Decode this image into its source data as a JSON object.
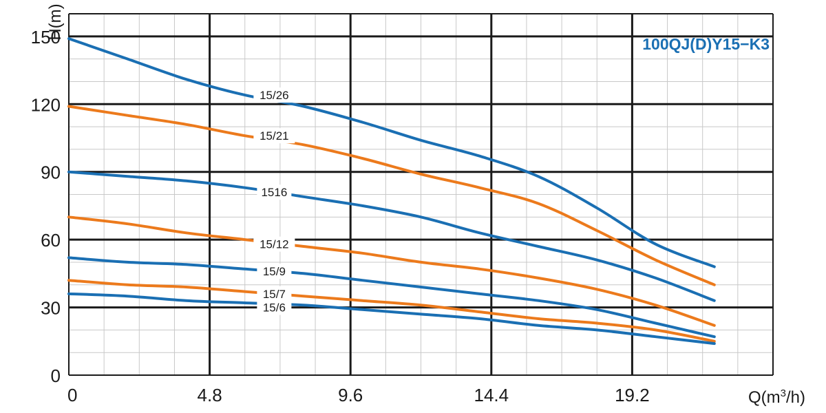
{
  "chart_data": {
    "type": "line",
    "title": "100QJ(D)Y15−K3",
    "xlabel": "Q(m³/h)",
    "ylabel": "H(m)",
    "xlim": [
      0,
      24
    ],
    "ylim": [
      0,
      160
    ],
    "x_ticks": [
      0,
      4.8,
      9.6,
      14.4,
      19.2
    ],
    "x_tick_labels": [
      "0",
      "4.8",
      "9.6",
      "14.4",
      "19.2"
    ],
    "y_ticks": [
      0,
      30,
      60,
      90,
      120,
      150
    ],
    "y_tick_labels": [
      "0",
      "30",
      "60",
      "90",
      "120",
      "150"
    ],
    "grid": true,
    "colors": {
      "blue": "#1a6fb3",
      "orange": "#ec7a1c",
      "grid_major": "#1a1a1a",
      "grid_minor": "#c8c8c8",
      "title": "#1a6fb3"
    },
    "series": [
      {
        "name": "15/26",
        "color": "blue",
        "x": [
          0,
          2,
          4,
          6,
          8,
          10,
          12,
          14,
          16,
          18,
          20,
          22
        ],
        "y": [
          149,
          140,
          131,
          124,
          119,
          112,
          104,
          97,
          88,
          74,
          58,
          48
        ]
      },
      {
        "name": "15/21",
        "color": "orange",
        "x": [
          0,
          2,
          4,
          6,
          8,
          10,
          12,
          14,
          16,
          18,
          20,
          22
        ],
        "y": [
          119,
          115,
          111,
          106,
          102,
          96,
          89,
          83,
          76,
          64,
          51,
          40
        ]
      },
      {
        "name": "1516",
        "color": "blue",
        "x": [
          0,
          2,
          4,
          6,
          8,
          10,
          12,
          14,
          16,
          18,
          20,
          22
        ],
        "y": [
          90,
          88,
          86,
          83,
          79,
          75,
          70,
          63,
          57,
          51,
          43,
          33
        ]
      },
      {
        "name": "15/12",
        "color": "orange",
        "x": [
          0,
          2,
          4,
          6,
          8,
          10,
          12,
          14,
          16,
          18,
          20,
          22
        ],
        "y": [
          70,
          67,
          63,
          60,
          57,
          54,
          50,
          47,
          43,
          38,
          31,
          22
        ]
      },
      {
        "name": "15/9",
        "color": "blue",
        "x": [
          0,
          2,
          4,
          6,
          8,
          10,
          12,
          14,
          16,
          18,
          20,
          22
        ],
        "y": [
          52,
          50,
          49,
          47,
          45,
          42,
          39,
          36,
          33,
          29,
          23,
          17
        ]
      },
      {
        "name": "15/7",
        "color": "orange",
        "x": [
          0,
          2,
          4,
          6,
          8,
          10,
          12,
          14,
          16,
          18,
          20,
          22
        ],
        "y": [
          42,
          40,
          39,
          37,
          35,
          33,
          31,
          28,
          25,
          23,
          20,
          15
        ]
      },
      {
        "name": "15/6",
        "color": "blue",
        "x": [
          0,
          2,
          4,
          6,
          8,
          10,
          12,
          14,
          16,
          18,
          20,
          22
        ],
        "y": [
          36,
          35,
          33,
          32,
          31,
          29,
          27,
          25,
          22,
          20,
          17,
          14
        ]
      }
    ],
    "curve_labels": [
      {
        "series": "15/26",
        "x": 7,
        "y": 124
      },
      {
        "series": "15/21",
        "x": 7,
        "y": 106
      },
      {
        "series": "1516",
        "x": 7,
        "y": 81
      },
      {
        "series": "15/12",
        "x": 7,
        "y": 58
      },
      {
        "series": "15/9",
        "x": 7,
        "y": 46
      },
      {
        "series": "15/7",
        "x": 7,
        "y": 36
      },
      {
        "series": "15/6",
        "x": 7,
        "y": 30
      }
    ]
  }
}
